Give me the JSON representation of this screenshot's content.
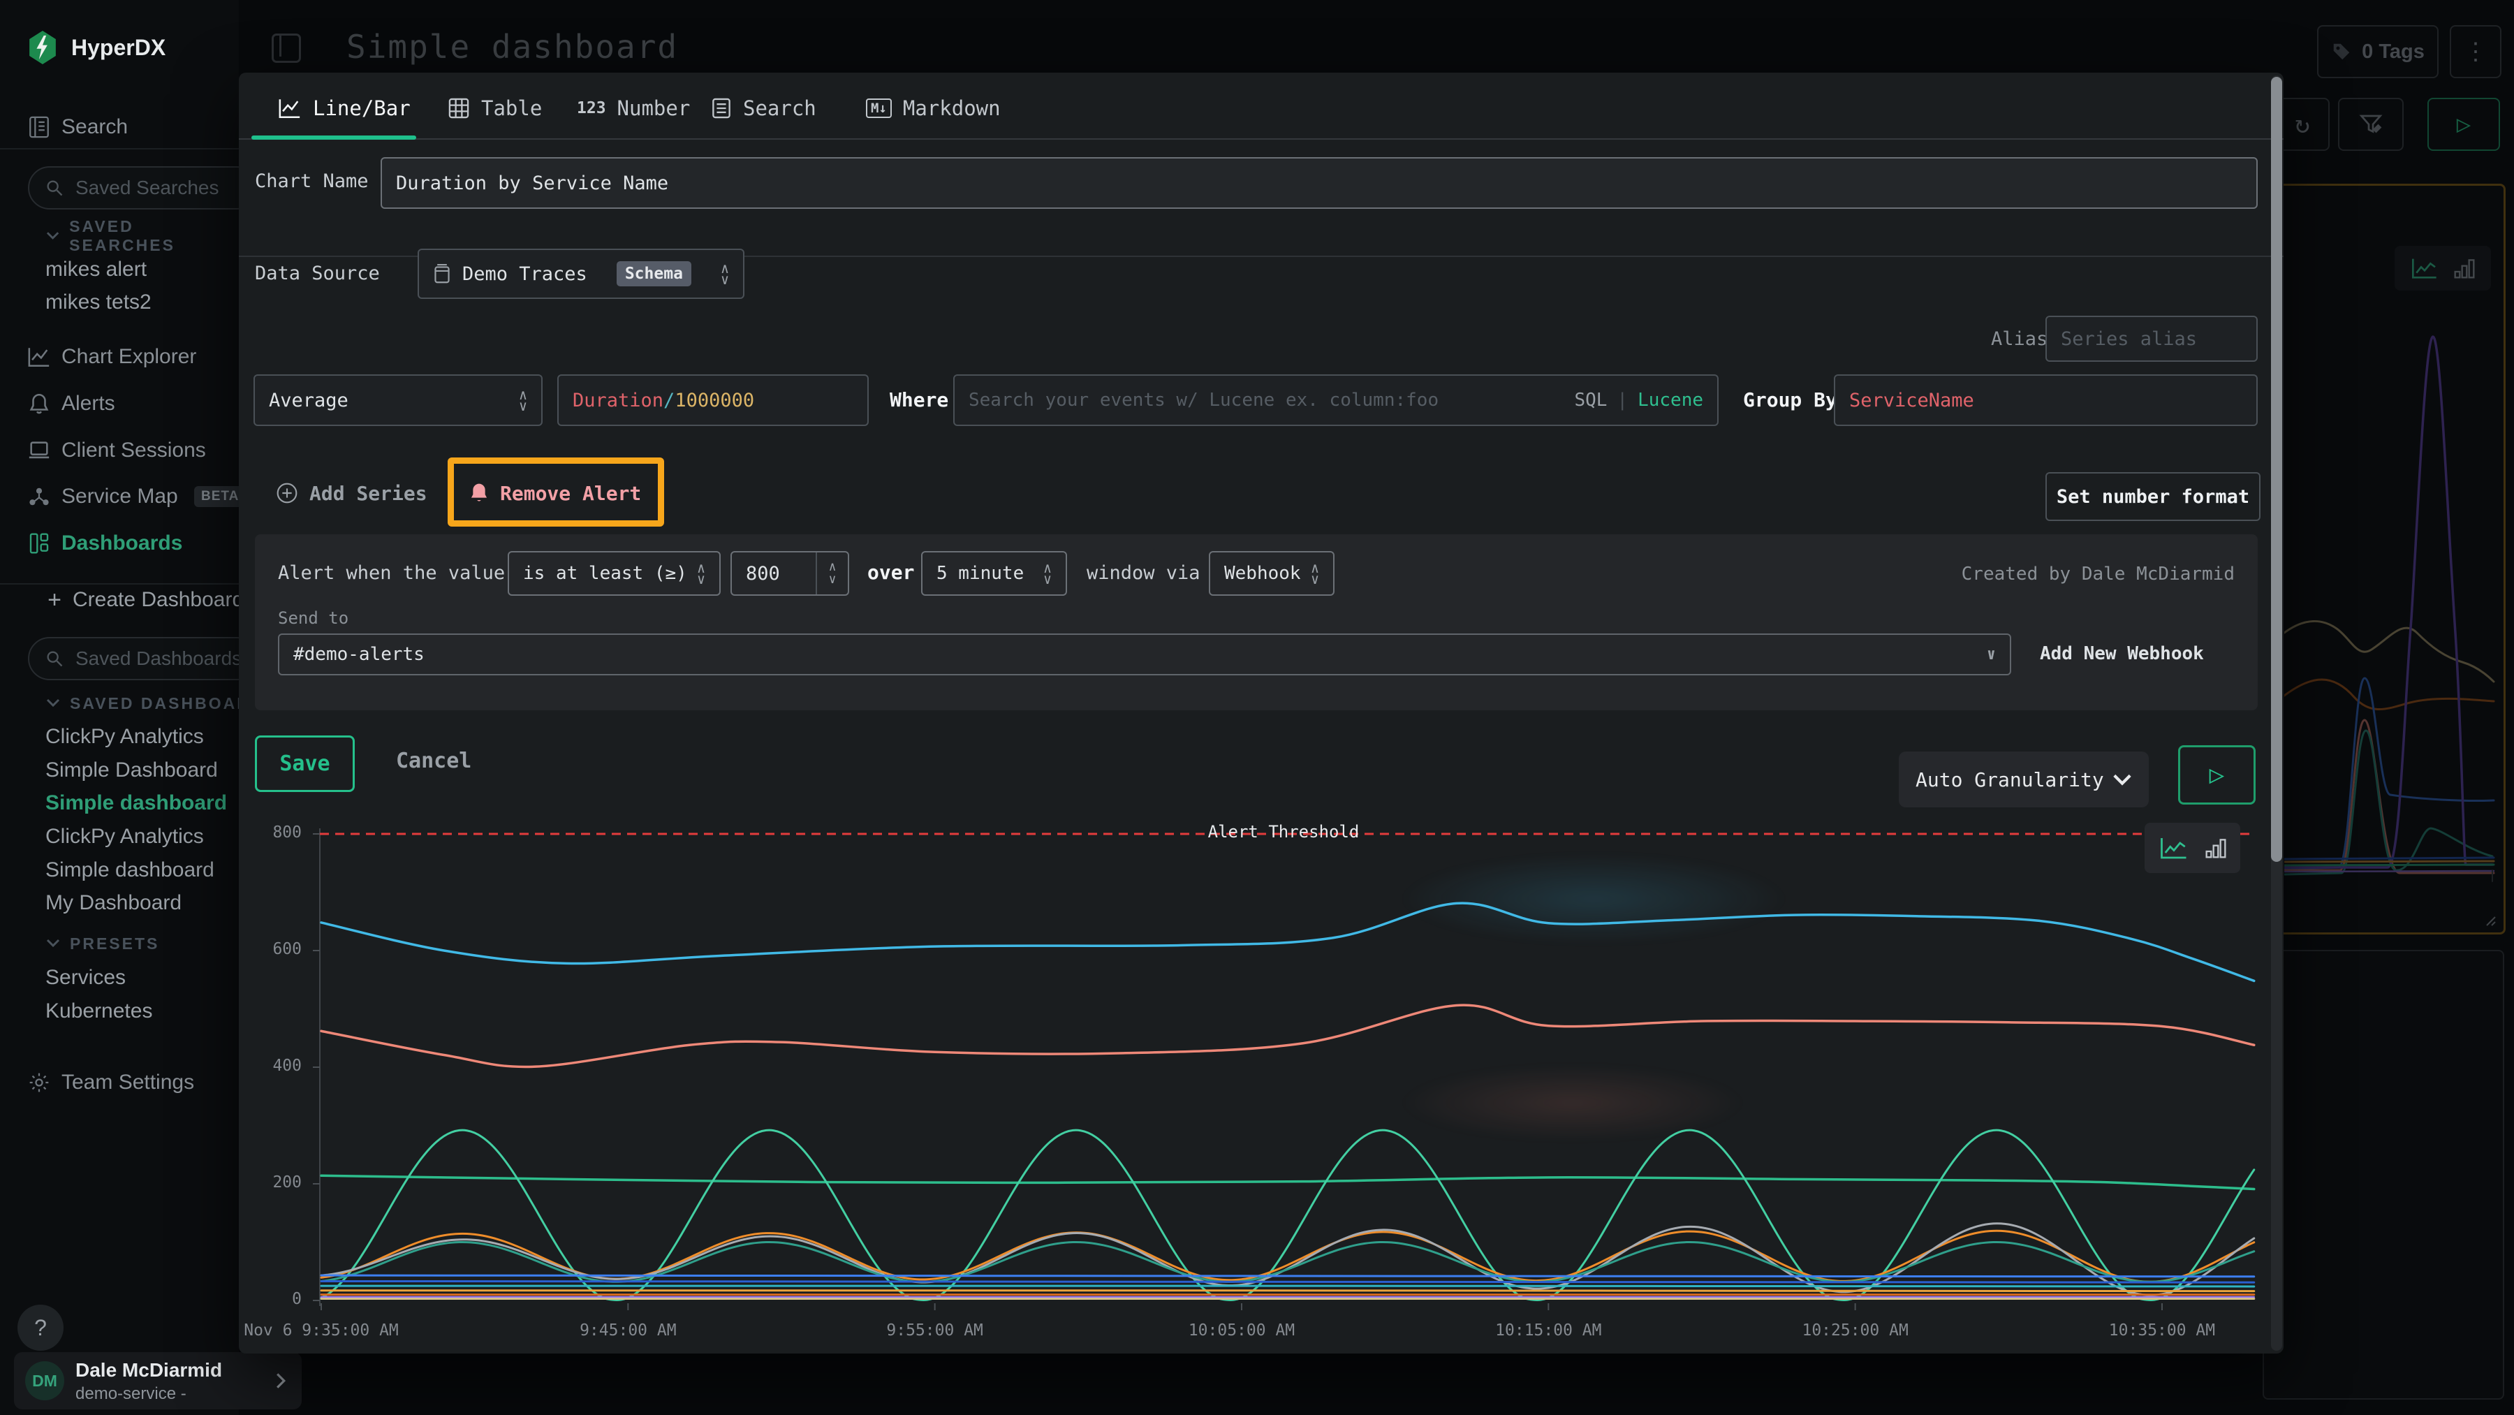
{
  "app": {
    "brand": "HyperDX",
    "page_title": "Simple dashboard"
  },
  "header": {
    "tags_button": "0 Tags"
  },
  "sidebar": {
    "search_label": "Search",
    "saved_searches_placeholder": "Saved Searches",
    "saved_searches_header": "SAVED SEARCHES",
    "saved_searches": [
      {
        "label": "mikes alert"
      },
      {
        "label": "mikes tets2"
      }
    ],
    "nav": [
      {
        "label": "Chart Explorer"
      },
      {
        "label": "Alerts"
      },
      {
        "label": "Client Sessions"
      },
      {
        "label": "Service Map",
        "badge": "BETA"
      },
      {
        "label": "Dashboards"
      }
    ],
    "create_dashboard": "Create Dashboard",
    "saved_dashboards_placeholder": "Saved Dashboards",
    "saved_dashboards_header": "SAVED DASHBOARDS",
    "saved_dashboards": [
      {
        "label": "ClickPy Analytics"
      },
      {
        "label": "Simple Dashboard"
      },
      {
        "label": "Simple dashboard"
      },
      {
        "label": "ClickPy Analytics"
      },
      {
        "label": "Simple dashboard"
      },
      {
        "label": "My Dashboard"
      }
    ],
    "presets_header": "PRESETS",
    "presets": [
      {
        "label": "Services"
      },
      {
        "label": "Kubernetes"
      }
    ],
    "team_settings": "Team Settings",
    "help": "?",
    "user": {
      "initials": "DM",
      "name": "Dale McDiarmid",
      "subtitle": "demo-service -"
    }
  },
  "modal": {
    "tabs": [
      {
        "label": "Line/Bar"
      },
      {
        "label": "Table"
      },
      {
        "label": "Number",
        "icon_text": "123"
      },
      {
        "label": "Search"
      },
      {
        "label": "Markdown",
        "icon_text": "M↓"
      }
    ],
    "chart_name": {
      "label": "Chart Name",
      "value": "Duration by Service Name"
    },
    "data_source": {
      "label": "Data Source",
      "value": "Demo Traces",
      "badge": "Schema"
    },
    "alias": {
      "label": "Alias",
      "placeholder": "Series alias"
    },
    "series_row": {
      "aggregation": "Average",
      "expr_field": "Duration",
      "expr_slash": "/",
      "expr_divisor": "1000000",
      "where_label": "Where",
      "search_placeholder": "Search your events w/ Lucene ex. column:foo",
      "lang_sql": "SQL",
      "lang_divider": "|",
      "lang_lucene": "Lucene",
      "group_by_label": "Group By",
      "group_by_value": "ServiceName"
    },
    "add_series": "Add Series",
    "remove_alert": "Remove Alert",
    "set_number_format": "Set number format",
    "alert": {
      "prefix": "Alert when the value",
      "condition": "is at least (≥)",
      "threshold": "800",
      "over": "over",
      "window": "5 minute",
      "via": "window via",
      "channel": "Webhook",
      "created_by": "Created by Dale McDiarmid",
      "send_to_label": "Send to",
      "send_to_value": "#demo-alerts",
      "add_webhook": "Add New Webhook"
    },
    "save": "Save",
    "cancel": "Cancel",
    "granularity": "Auto Granularity"
  },
  "background_panel": {
    "x_label": "10:35:00 AM"
  },
  "chart_data": {
    "type": "line",
    "title": "Duration by Service Name",
    "xlabel": "",
    "ylabel": "",
    "ylim": [
      0,
      800
    ],
    "y_ticks": [
      0,
      200,
      400,
      600,
      800
    ],
    "x_tick_minutes": [
      0,
      10,
      20,
      30,
      40,
      50,
      60
    ],
    "x_tick_labels": [
      "Nov 6 9:35:00 AM",
      "9:45:00 AM",
      "9:55:00 AM",
      "10:05:00 AM",
      "10:15:00 AM",
      "10:25:00 AM",
      "10:35:00 AM"
    ],
    "x_domain_minutes": [
      0,
      63
    ],
    "grid": false,
    "legend": false,
    "threshold": {
      "value": 800,
      "label": "Alert Threshold",
      "color": "#e23c3c"
    },
    "series": [
      {
        "name": "line-cyan",
        "color": "#41b9e6",
        "width": 3.5,
        "points": [
          [
            0,
            648
          ],
          [
            4,
            600
          ],
          [
            8,
            578
          ],
          [
            13,
            591
          ],
          [
            20,
            607
          ],
          [
            28,
            609
          ],
          [
            33,
            622
          ],
          [
            37,
            681
          ],
          [
            40,
            647
          ],
          [
            44,
            652
          ],
          [
            48,
            661
          ],
          [
            52,
            659
          ],
          [
            56,
            651
          ],
          [
            59,
            620
          ],
          [
            61,
            586
          ],
          [
            63,
            548
          ]
        ]
      },
      {
        "name": "line-salmon",
        "color": "#ee8878",
        "width": 3.5,
        "points": [
          [
            0,
            462
          ],
          [
            4,
            421
          ],
          [
            7,
            401
          ],
          [
            12,
            438
          ],
          [
            15,
            443
          ],
          [
            20,
            426
          ],
          [
            26,
            424
          ],
          [
            32,
            441
          ],
          [
            37,
            506
          ],
          [
            40,
            471
          ],
          [
            45,
            479
          ],
          [
            50,
            479
          ],
          [
            55,
            477
          ],
          [
            60,
            470
          ],
          [
            63,
            438
          ]
        ]
      },
      {
        "name": "line-green-flat",
        "color": "#2dbd8c",
        "width": 3.5,
        "points": [
          [
            0,
            214
          ],
          [
            8,
            208
          ],
          [
            16,
            203
          ],
          [
            24,
            202
          ],
          [
            32,
            204
          ],
          [
            40,
            211
          ],
          [
            48,
            208
          ],
          [
            54,
            206
          ],
          [
            58,
            203
          ],
          [
            61,
            196
          ],
          [
            63,
            191
          ]
        ]
      },
      {
        "name": "wave-teal-large",
        "color": "#43cfa2",
        "width": 3,
        "wave": {
          "base": 146,
          "amp": 146,
          "period": 10,
          "peak_t": 4.6
        }
      },
      {
        "name": "wave-orange",
        "color": "#ef8d2a",
        "width": 3,
        "wave": {
          "base": 76,
          "amp": 38,
          "period": 10,
          "peak_t": 4.6,
          "amp_growth": 0.1
        }
      },
      {
        "name": "wave-gray",
        "color": "#a6abb1",
        "width": 3,
        "wave": {
          "base": 72,
          "amp": 30,
          "period": 10,
          "peak_t": 4.6,
          "amp_growth": 0.55
        }
      },
      {
        "name": "wave-teal-small",
        "color": "#2f9f8b",
        "width": 3,
        "wave": {
          "base": 66,
          "amp": 34,
          "period": 10,
          "peak_t": 4.6
        }
      },
      {
        "name": "flat-blue",
        "color": "#3d7ff0",
        "width": 3,
        "points": [
          [
            0,
            43
          ],
          [
            30,
            42
          ],
          [
            63,
            41
          ]
        ]
      },
      {
        "name": "flat-blue-dark",
        "color": "#2a5fd0",
        "width": 3,
        "points": [
          [
            0,
            33
          ],
          [
            30,
            32
          ],
          [
            63,
            31
          ]
        ]
      },
      {
        "name": "flat-cyan",
        "color": "#2fb3c4",
        "width": 3,
        "points": [
          [
            0,
            25
          ],
          [
            30,
            25
          ],
          [
            63,
            24
          ]
        ]
      },
      {
        "name": "flat-amber",
        "color": "#e8a23c",
        "width": 3,
        "points": [
          [
            0,
            17
          ],
          [
            30,
            17
          ],
          [
            63,
            16
          ]
        ]
      },
      {
        "name": "flat-orange",
        "color": "#d96a1e",
        "width": 3,
        "points": [
          [
            0,
            10
          ],
          [
            30,
            10
          ],
          [
            63,
            10
          ]
        ]
      },
      {
        "name": "flat-purple",
        "color": "#9b7bf0",
        "width": 2.5,
        "points": [
          [
            0,
            6
          ],
          [
            30,
            6
          ],
          [
            63,
            6
          ]
        ]
      },
      {
        "name": "flat-tan",
        "color": "#d6c18c",
        "width": 3,
        "points": [
          [
            0,
            3
          ],
          [
            30,
            3
          ],
          [
            63,
            3
          ]
        ]
      }
    ]
  }
}
